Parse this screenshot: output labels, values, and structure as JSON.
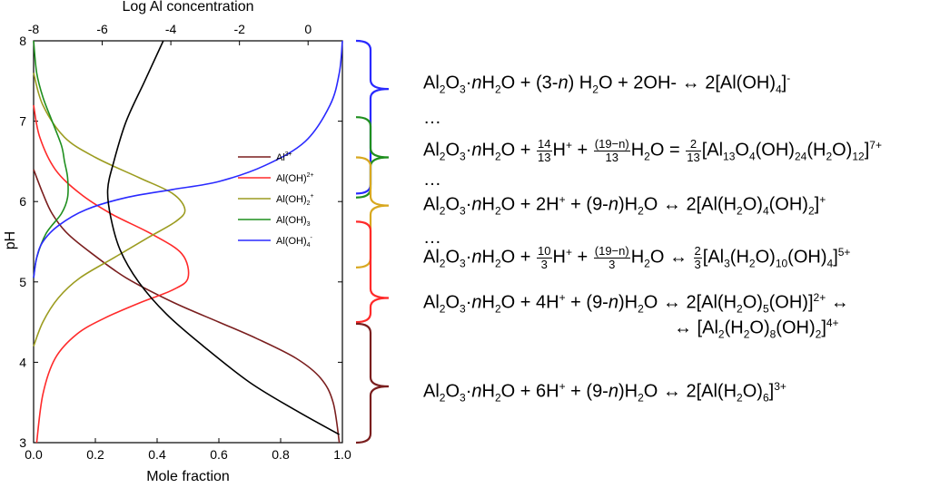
{
  "chart_data": {
    "type": "line",
    "xlabel": "Mole fraction",
    "x2label": "Log Al concentration",
    "ylabel": "pH",
    "xlim": [
      0,
      1
    ],
    "x2lim": [
      -8,
      1
    ],
    "ylim": [
      3,
      8
    ],
    "xticks": [
      "0.0",
      "0.2",
      "0.4",
      "0.6",
      "0.8",
      "1.0"
    ],
    "x2ticks": [
      "-8",
      "-6",
      "-4",
      "-2",
      "0"
    ],
    "yticks": [
      "3",
      "4",
      "5",
      "6",
      "7",
      "8"
    ],
    "legend_position": "middle",
    "series": [
      {
        "name": "Al3+",
        "label_base": "Al",
        "label_sup": "3+",
        "color": "#7a1e1e",
        "points": [
          [
            0.99,
            3.0
          ],
          [
            0.97,
            3.5
          ],
          [
            0.93,
            3.8
          ],
          [
            0.85,
            4.05
          ],
          [
            0.72,
            4.3
          ],
          [
            0.6,
            4.5
          ],
          [
            0.45,
            4.75
          ],
          [
            0.3,
            5.05
          ],
          [
            0.19,
            5.35
          ],
          [
            0.11,
            5.6
          ],
          [
            0.06,
            5.85
          ],
          [
            0.03,
            6.1
          ],
          [
            0.0,
            6.4
          ]
        ]
      },
      {
        "name": "Al(OH)2+",
        "label_base": "Al(OH)",
        "label_sup": "2+",
        "color": "#ff2a2a",
        "points": [
          [
            0.01,
            3.0
          ],
          [
            0.03,
            3.6
          ],
          [
            0.07,
            4.05
          ],
          [
            0.14,
            4.35
          ],
          [
            0.23,
            4.55
          ],
          [
            0.35,
            4.75
          ],
          [
            0.45,
            4.9
          ],
          [
            0.5,
            5.05
          ],
          [
            0.48,
            5.35
          ],
          [
            0.38,
            5.6
          ],
          [
            0.25,
            5.85
          ],
          [
            0.15,
            6.1
          ],
          [
            0.07,
            6.4
          ],
          [
            0.02,
            6.8
          ],
          [
            0.0,
            7.2
          ]
        ]
      },
      {
        "name": "Al(OH)2+ (dimer)",
        "label_base": "Al(OH)",
        "label_sub": "2",
        "label_sup": "+",
        "color": "#9c9c20",
        "points": [
          [
            0.0,
            4.2
          ],
          [
            0.03,
            4.5
          ],
          [
            0.08,
            4.8
          ],
          [
            0.15,
            5.05
          ],
          [
            0.26,
            5.3
          ],
          [
            0.37,
            5.55
          ],
          [
            0.46,
            5.75
          ],
          [
            0.49,
            5.9
          ],
          [
            0.45,
            6.1
          ],
          [
            0.34,
            6.3
          ],
          [
            0.2,
            6.55
          ],
          [
            0.1,
            6.8
          ],
          [
            0.03,
            7.2
          ],
          [
            0.0,
            7.6
          ]
        ]
      },
      {
        "name": "Al(OH)3",
        "label_base": "Al(OH)",
        "label_sub": "3",
        "color": "#1f8f1f",
        "points": [
          [
            0.0,
            5.05
          ],
          [
            0.01,
            5.3
          ],
          [
            0.04,
            5.6
          ],
          [
            0.09,
            5.85
          ],
          [
            0.11,
            6.05
          ],
          [
            0.11,
            6.3
          ],
          [
            0.1,
            6.5
          ],
          [
            0.09,
            6.7
          ],
          [
            0.06,
            7.0
          ],
          [
            0.03,
            7.3
          ],
          [
            0.01,
            7.6
          ],
          [
            0.0,
            8.0
          ]
        ]
      },
      {
        "name": "Al(OH)4-",
        "label_base": "Al(OH)",
        "label_sub": "4",
        "label_sup": "-",
        "color": "#2a2aff",
        "points": [
          [
            0.0,
            5.05
          ],
          [
            0.01,
            5.3
          ],
          [
            0.03,
            5.5
          ],
          [
            0.08,
            5.7
          ],
          [
            0.17,
            5.9
          ],
          [
            0.3,
            6.05
          ],
          [
            0.45,
            6.15
          ],
          [
            0.6,
            6.25
          ],
          [
            0.75,
            6.45
          ],
          [
            0.88,
            6.75
          ],
          [
            0.96,
            7.2
          ],
          [
            0.99,
            7.6
          ],
          [
            1.0,
            8.0
          ]
        ]
      },
      {
        "name": "Log Al concentration",
        "color": "#000000",
        "axis": "x2",
        "points": [
          [
            0.99,
            3.1
          ],
          [
            0.85,
            3.4
          ],
          [
            0.7,
            3.75
          ],
          [
            0.55,
            4.2
          ],
          [
            0.43,
            4.6
          ],
          [
            0.34,
            5.0
          ],
          [
            0.28,
            5.4
          ],
          [
            0.25,
            5.8
          ],
          [
            0.24,
            6.15
          ],
          [
            0.26,
            6.5
          ],
          [
            0.3,
            7.0
          ],
          [
            0.36,
            7.5
          ],
          [
            0.42,
            8.0
          ]
        ]
      }
    ],
    "brackets": [
      {
        "color": "#2a2aff",
        "top": 8.0,
        "bottom": 6.1,
        "tip": 7.4
      },
      {
        "color": "#1f8f1f",
        "top": 7.05,
        "bottom": 6.05,
        "tip": 6.55
      },
      {
        "color": "#d8a820",
        "top": 6.55,
        "bottom": 5.18,
        "tip": 5.95
      },
      {
        "color": "#ff2a2a",
        "top": 5.75,
        "bottom": 4.5,
        "tip": 4.8
      },
      {
        "color": "#7a1e1e",
        "top": 4.48,
        "bottom": 3.0,
        "tip": 3.7
      }
    ]
  },
  "equations": {
    "eq1": {
      "a": "Al",
      "b": "O",
      "c": "·",
      "d": "n",
      "e": "H",
      "f": "O + (3-",
      "g": "n",
      "h": ") H",
      "i": "O + 2OH- ↔ 2[Al(OH)",
      "j": "]",
      "k": "-"
    },
    "dots1": "…",
    "eq2": {
      "a": "Al",
      "b": "O",
      "c": "·",
      "d": "n",
      "e": "H",
      "f": "O + ",
      "fn1": "14",
      "fd1": "13",
      "g": "H",
      "h": "+",
      "i": " + ",
      "fn2": "(19−n)",
      "fd2": "13",
      "j": "H",
      "k": "O = ",
      "fn3": "2",
      "fd3": "13",
      "l": "[Al",
      "m": "O",
      "o": "(OH)",
      "p": "(H",
      "q": "O)",
      "r": "]",
      "s": "7+"
    },
    "dots2": "…",
    "eq3": {
      "a": "Al",
      "b": "O",
      "c": "·",
      "d": "n",
      "e": "H",
      "f": "O + 2H",
      "g": "+",
      "h": " + (9-",
      "i": "n",
      "j": ")H",
      "k": "O ↔ 2[Al(H",
      "l": "O)",
      "m": "(OH)",
      "o": "]",
      "p": "+"
    },
    "dots3": "…",
    "eq4": {
      "a": "Al",
      "b": "O",
      "c": "·",
      "d": "n",
      "e": "H",
      "f": "O + ",
      "fn1": "10",
      "fd1": "3",
      "g": "H",
      "h": "+",
      "i": " + ",
      "fn2": "(19−n)",
      "fd2": "3",
      "j": "H",
      "k": "O ↔ ",
      "fn3": "2",
      "fd3": "3",
      "l": "[Al",
      "m": "(H",
      "o": "O)",
      "p": "(OH)",
      "q": "]",
      "r": "5+"
    },
    "eq5": {
      "a": "Al",
      "b": "O",
      "c": "·",
      "d": "n",
      "e": "H",
      "f": "O + 4H",
      "g": "+",
      "h": " + (9-",
      "i": "n",
      "j": ")H",
      "k": "O ↔ 2[Al(H",
      "l": "O)",
      "m": "(OH)]",
      "o": "2+",
      "p": " ↔"
    },
    "eq5b": {
      "a": "↔ [Al",
      "b": "(H",
      "c": "O)",
      "d": "(OH)",
      "e": "]",
      "f": "4+"
    },
    "eq6": {
      "a": "Al",
      "b": "O",
      "c": "·",
      "d": "n",
      "e": "H",
      "f": "O + 6H",
      "g": "+",
      "h": " + (9-",
      "i": "n",
      "j": ")H",
      "k": "O ↔ 2[Al(H",
      "l": "O)",
      "m": "]",
      "o": "3+"
    },
    "subs": {
      "two": "2",
      "three": "3",
      "four": "4",
      "five": "5",
      "six": "6",
      "eight": "8",
      "ten": "10",
      "twelve": "12",
      "thirteen": "13",
      "twentyfour": "24"
    }
  }
}
